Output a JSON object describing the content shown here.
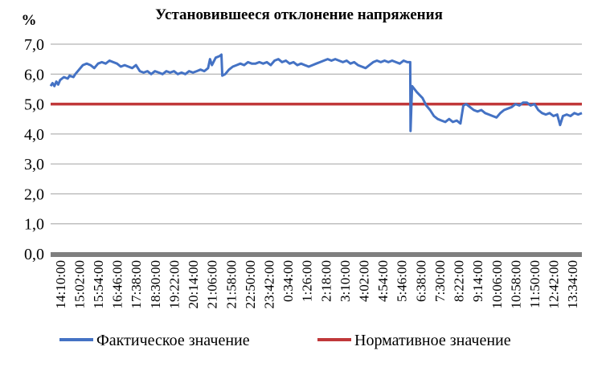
{
  "chart_data": {
    "type": "line",
    "title": "Установившееся отклонение напряжения",
    "y_unit": "%",
    "ylim": [
      0,
      7
    ],
    "y_ticks": [
      "0,0",
      "1,0",
      "2,0",
      "3,0",
      "4,0",
      "5,0",
      "6,0",
      "7,0"
    ],
    "grid": "horizontal",
    "legend_position": "bottom",
    "x_tick_labels": [
      "14:10:00",
      "15:02:00",
      "15:54:00",
      "16:46:00",
      "17:38:00",
      "18:30:00",
      "19:22:00",
      "20:14:00",
      "21:06:00",
      "21:58:00",
      "22:50:00",
      "23:42:00",
      "0:34:00",
      "1:26:00",
      "2:18:00",
      "3:10:00",
      "4:02:00",
      "4:54:00",
      "5:46:00",
      "6:38:00",
      "7:30:00",
      "8:22:00",
      "9:14:00",
      "10:06:00",
      "10:58:00",
      "11:50:00",
      "12:42:00",
      "13:34:00"
    ],
    "series": [
      {
        "name": "Фактическое значение",
        "color": "#4472C4",
        "points": [
          [
            0,
            5.6
          ],
          [
            0.1,
            5.7
          ],
          [
            0.2,
            5.6
          ],
          [
            0.3,
            5.75
          ],
          [
            0.4,
            5.65
          ],
          [
            0.5,
            5.8
          ],
          [
            0.7,
            5.9
          ],
          [
            0.9,
            5.85
          ],
          [
            1.0,
            5.95
          ],
          [
            1.2,
            5.9
          ],
          [
            1.3,
            6.0
          ],
          [
            1.5,
            6.15
          ],
          [
            1.7,
            6.3
          ],
          [
            1.9,
            6.35
          ],
          [
            2.1,
            6.3
          ],
          [
            2.3,
            6.2
          ],
          [
            2.5,
            6.35
          ],
          [
            2.7,
            6.4
          ],
          [
            2.9,
            6.35
          ],
          [
            3.1,
            6.45
          ],
          [
            3.3,
            6.4
          ],
          [
            3.5,
            6.35
          ],
          [
            3.7,
            6.25
          ],
          [
            3.9,
            6.3
          ],
          [
            4.1,
            6.25
          ],
          [
            4.3,
            6.2
          ],
          [
            4.5,
            6.3
          ],
          [
            4.7,
            6.1
          ],
          [
            4.9,
            6.05
          ],
          [
            5.1,
            6.1
          ],
          [
            5.3,
            6.0
          ],
          [
            5.5,
            6.1
          ],
          [
            5.7,
            6.05
          ],
          [
            5.9,
            6.0
          ],
          [
            6.1,
            6.1
          ],
          [
            6.3,
            6.05
          ],
          [
            6.5,
            6.1
          ],
          [
            6.7,
            6.0
          ],
          [
            6.9,
            6.05
          ],
          [
            7.1,
            6.0
          ],
          [
            7.3,
            6.1
          ],
          [
            7.5,
            6.05
          ],
          [
            7.7,
            6.1
          ],
          [
            7.9,
            6.15
          ],
          [
            8.1,
            6.1
          ],
          [
            8.3,
            6.2
          ],
          [
            8.4,
            6.5
          ],
          [
            8.5,
            6.3
          ],
          [
            8.7,
            6.55
          ],
          [
            8.9,
            6.6
          ],
          [
            9.0,
            6.65
          ],
          [
            9.05,
            5.95
          ],
          [
            9.2,
            6.0
          ],
          [
            9.4,
            6.15
          ],
          [
            9.6,
            6.25
          ],
          [
            9.8,
            6.3
          ],
          [
            10.0,
            6.35
          ],
          [
            10.2,
            6.3
          ],
          [
            10.4,
            6.4
          ],
          [
            10.6,
            6.35
          ],
          [
            10.8,
            6.35
          ],
          [
            11.0,
            6.4
          ],
          [
            11.2,
            6.35
          ],
          [
            11.4,
            6.4
          ],
          [
            11.6,
            6.3
          ],
          [
            11.8,
            6.45
          ],
          [
            12.0,
            6.5
          ],
          [
            12.2,
            6.4
          ],
          [
            12.4,
            6.45
          ],
          [
            12.6,
            6.35
          ],
          [
            12.8,
            6.4
          ],
          [
            13.0,
            6.3
          ],
          [
            13.2,
            6.35
          ],
          [
            13.4,
            6.3
          ],
          [
            13.6,
            6.25
          ],
          [
            13.8,
            6.3
          ],
          [
            14.0,
            6.35
          ],
          [
            14.2,
            6.4
          ],
          [
            14.4,
            6.45
          ],
          [
            14.6,
            6.5
          ],
          [
            14.8,
            6.45
          ],
          [
            15.0,
            6.5
          ],
          [
            15.2,
            6.45
          ],
          [
            15.4,
            6.4
          ],
          [
            15.6,
            6.45
          ],
          [
            15.8,
            6.35
          ],
          [
            16.0,
            6.4
          ],
          [
            16.2,
            6.3
          ],
          [
            16.4,
            6.25
          ],
          [
            16.6,
            6.2
          ],
          [
            16.8,
            6.3
          ],
          [
            17.0,
            6.4
          ],
          [
            17.2,
            6.45
          ],
          [
            17.4,
            6.4
          ],
          [
            17.6,
            6.45
          ],
          [
            17.8,
            6.4
          ],
          [
            18.0,
            6.45
          ],
          [
            18.2,
            6.4
          ],
          [
            18.4,
            6.35
          ],
          [
            18.6,
            6.45
          ],
          [
            18.8,
            6.4
          ],
          [
            18.95,
            6.4
          ],
          [
            18.97,
            4.1
          ],
          [
            19.05,
            5.6
          ],
          [
            19.3,
            5.4
          ],
          [
            19.6,
            5.2
          ],
          [
            19.8,
            4.95
          ],
          [
            20.0,
            4.8
          ],
          [
            20.2,
            4.6
          ],
          [
            20.4,
            4.5
          ],
          [
            20.6,
            4.45
          ],
          [
            20.8,
            4.4
          ],
          [
            21.0,
            4.5
          ],
          [
            21.2,
            4.4
          ],
          [
            21.4,
            4.45
          ],
          [
            21.6,
            4.35
          ],
          [
            21.75,
            4.95
          ],
          [
            21.9,
            5.0
          ],
          [
            22.1,
            4.9
          ],
          [
            22.3,
            4.8
          ],
          [
            22.5,
            4.75
          ],
          [
            22.7,
            4.8
          ],
          [
            22.9,
            4.7
          ],
          [
            23.1,
            4.65
          ],
          [
            23.3,
            4.6
          ],
          [
            23.5,
            4.55
          ],
          [
            23.7,
            4.7
          ],
          [
            23.9,
            4.8
          ],
          [
            24.1,
            4.85
          ],
          [
            24.3,
            4.9
          ],
          [
            24.5,
            5.0
          ],
          [
            24.7,
            4.95
          ],
          [
            24.9,
            5.05
          ],
          [
            25.1,
            5.05
          ],
          [
            25.3,
            4.95
          ],
          [
            25.5,
            5.0
          ],
          [
            25.7,
            4.8
          ],
          [
            25.9,
            4.7
          ],
          [
            26.1,
            4.65
          ],
          [
            26.3,
            4.7
          ],
          [
            26.5,
            4.6
          ],
          [
            26.7,
            4.65
          ],
          [
            26.85,
            4.3
          ],
          [
            27.0,
            4.6
          ],
          [
            27.2,
            4.65
          ],
          [
            27.4,
            4.6
          ],
          [
            27.6,
            4.7
          ],
          [
            27.8,
            4.65
          ],
          [
            28.0,
            4.7
          ]
        ]
      },
      {
        "name": "Нормативное значение",
        "color": "#C0383A",
        "points": [
          [
            0,
            5.0
          ],
          [
            28.0,
            5.0
          ]
        ]
      }
    ]
  }
}
